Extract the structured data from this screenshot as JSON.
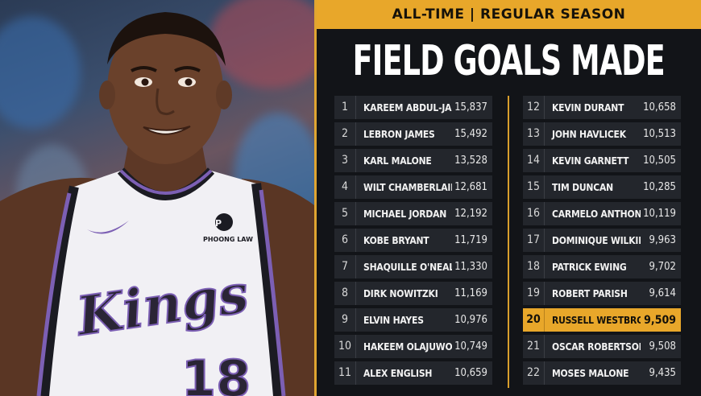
{
  "header": {
    "banner": "ALL-TIME | REGULAR SEASON",
    "title": "FIELD GOALS MADE"
  },
  "jersey": {
    "team_text": "Kings",
    "number": "18",
    "sponsor": "PHOONG LAW"
  },
  "colors": {
    "accent": "#e8a72a",
    "row_bg": "#23262c",
    "background": "#121418",
    "jersey_purple": "#7c5fb4"
  },
  "leaders": {
    "left": [
      {
        "rank": "1",
        "name": "Kareem Abdul-Jabbar",
        "value": "15,837"
      },
      {
        "rank": "2",
        "name": "LeBron James",
        "value": "15,492"
      },
      {
        "rank": "3",
        "name": "Karl Malone",
        "value": "13,528"
      },
      {
        "rank": "4",
        "name": "Wilt Chamberlain",
        "value": "12,681"
      },
      {
        "rank": "5",
        "name": "Michael Jordan",
        "value": "12,192"
      },
      {
        "rank": "6",
        "name": "Kobe Bryant",
        "value": "11,719"
      },
      {
        "rank": "7",
        "name": "Shaquille O'Neal",
        "value": "11,330"
      },
      {
        "rank": "8",
        "name": "Dirk Nowitzki",
        "value": "11,169"
      },
      {
        "rank": "9",
        "name": "Elvin Hayes",
        "value": "10,976"
      },
      {
        "rank": "10",
        "name": "Hakeem Olajuwon",
        "value": "10,749"
      },
      {
        "rank": "11",
        "name": "Alex English",
        "value": "10,659"
      }
    ],
    "right": [
      {
        "rank": "12",
        "name": "Kevin Durant",
        "value": "10,658"
      },
      {
        "rank": "13",
        "name": "John Havlicek",
        "value": "10,513"
      },
      {
        "rank": "14",
        "name": "Kevin Garnett",
        "value": "10,505"
      },
      {
        "rank": "15",
        "name": "Tim Duncan",
        "value": "10,285"
      },
      {
        "rank": "16",
        "name": "Carmelo Anthony",
        "value": "10,119"
      },
      {
        "rank": "17",
        "name": "Dominique Wilkins",
        "value": "9,963"
      },
      {
        "rank": "18",
        "name": "Patrick Ewing",
        "value": "9,702"
      },
      {
        "rank": "19",
        "name": "Robert Parish",
        "value": "9,614"
      },
      {
        "rank": "20",
        "name": "Russell Westbrook",
        "value": "9,509",
        "highlight": true
      },
      {
        "rank": "21",
        "name": "Oscar Robertson",
        "value": "9,508"
      },
      {
        "rank": "22",
        "name": "Moses Malone",
        "value": "9,435"
      }
    ]
  }
}
